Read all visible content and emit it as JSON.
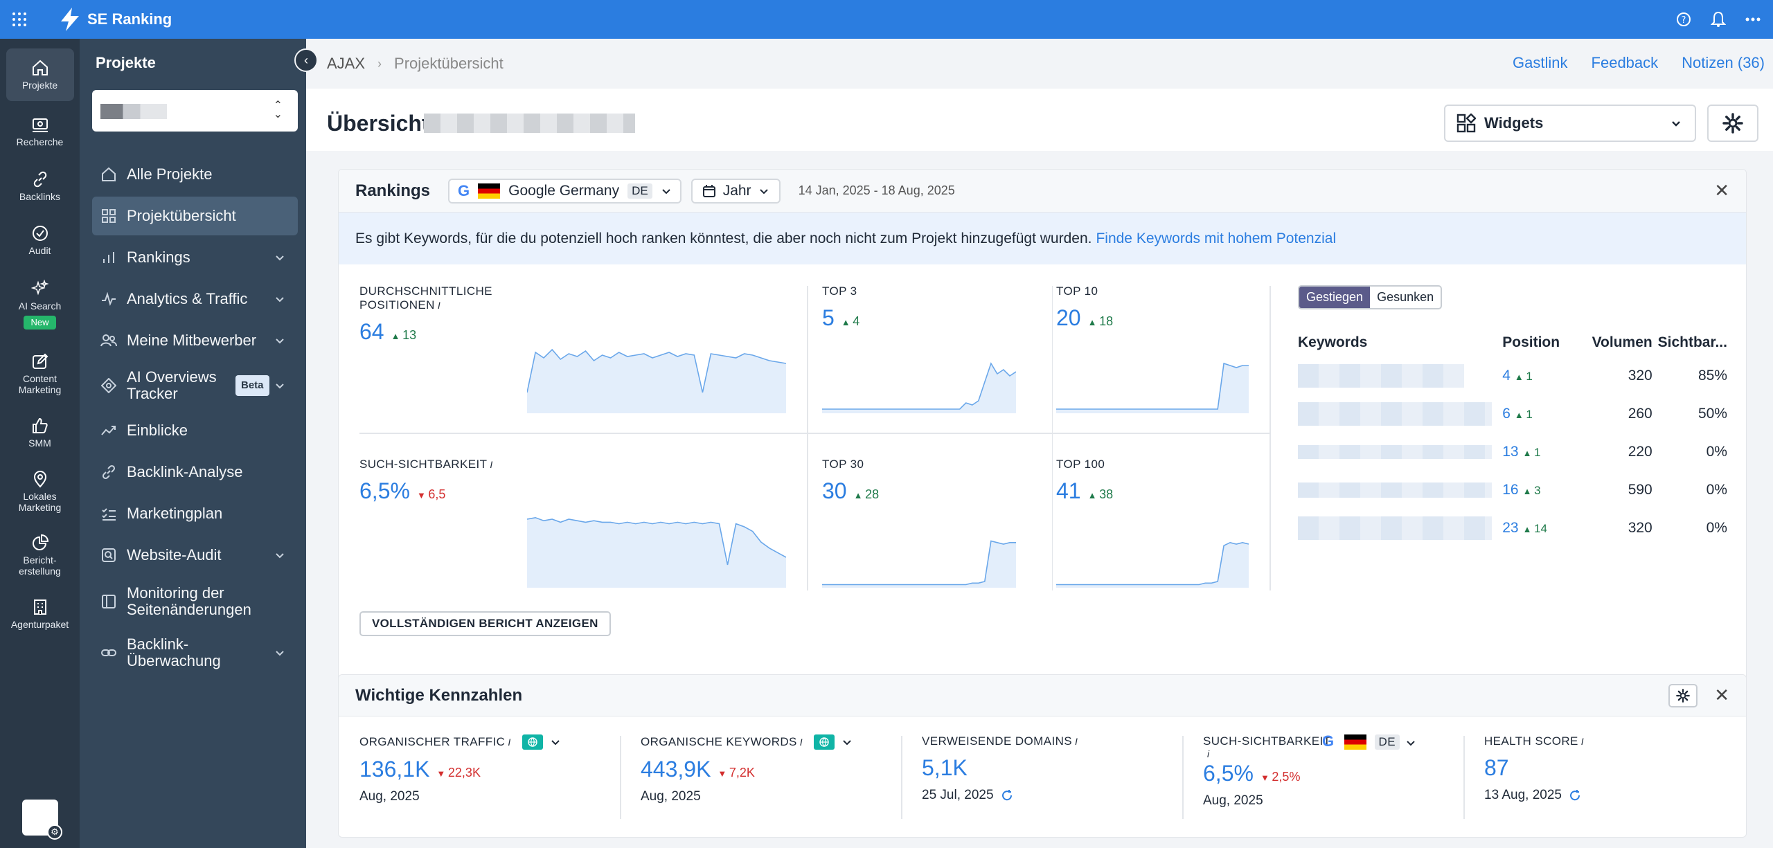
{
  "app": {
    "brand": "SE Ranking"
  },
  "rail": {
    "items": [
      {
        "label": "Projekte",
        "icon": "home-icon"
      },
      {
        "label": "Recherche",
        "icon": "research-icon"
      },
      {
        "label": "Backlinks",
        "icon": "link-icon"
      },
      {
        "label": "Audit",
        "icon": "check-circle-icon"
      },
      {
        "label": "AI Search",
        "icon": "sparkle-icon",
        "badge": "New"
      },
      {
        "label": "Content Marketing",
        "icon": "edit-icon"
      },
      {
        "label": "SMM",
        "icon": "thumbs-up-icon"
      },
      {
        "label": "Lokales Marketing",
        "icon": "map-pin-icon"
      },
      {
        "label": "Bericht-erstellung",
        "icon": "pie-chart-icon"
      },
      {
        "label": "Agenturpaket",
        "icon": "building-icon"
      }
    ]
  },
  "sidebar": {
    "title": "Projekte",
    "items": [
      {
        "label": "Alle Projekte",
        "icon": "home-icon",
        "chevron": false
      },
      {
        "label": "Projektübersicht",
        "icon": "grid-icon",
        "chevron": false
      },
      {
        "label": "Rankings",
        "icon": "bar-chart-icon",
        "chevron": true
      },
      {
        "label": "Analytics & Traffic",
        "icon": "pulse-icon",
        "chevron": true
      },
      {
        "label": "Meine Mitbewerber",
        "icon": "users-icon",
        "chevron": true
      },
      {
        "label": "AI Overviews Tracker",
        "icon": "ai-icon",
        "chevron": true,
        "badge": "Beta"
      },
      {
        "label": "Einblicke",
        "icon": "trend-icon",
        "chevron": false
      },
      {
        "label": "Backlink-Analyse",
        "icon": "link-icon",
        "chevron": false
      },
      {
        "label": "Marketingplan",
        "icon": "checklist-icon",
        "chevron": false
      },
      {
        "label": "Website-Audit",
        "icon": "audit-icon",
        "chevron": true
      },
      {
        "label": "Monitoring der Seitenänderungen",
        "icon": "book-icon",
        "chevron": false
      },
      {
        "label": "Backlink-Überwachung",
        "icon": "chain-icon",
        "chevron": true
      }
    ]
  },
  "breadcrumb": {
    "root": "AJAX",
    "current": "Projektübersicht"
  },
  "header_links": {
    "guest": "Gastlink",
    "feedback": "Feedback",
    "notes": "Notizen (36)"
  },
  "page": {
    "title": "Übersicht",
    "widgets_label": "Widgets"
  },
  "rankings": {
    "title": "Rankings",
    "engine": "Google Germany",
    "engine_region": "DE",
    "period": "Jahr",
    "date_range": "14 Jan, 2025 - 18 Aug, 2025",
    "banner_text": "Es gibt Keywords, für die du potenziell hoch ranken könntest, die aber noch nicht zum Projekt hinzugefügt wurden.",
    "banner_link": "Finde Keywords mit hohem Potenzial",
    "avg_pos": {
      "label": "Durchschnittliche Positionen",
      "value": "64",
      "change": "13"
    },
    "visibility": {
      "label": "Such-Sichtbarkeit",
      "value": "6,5%",
      "change": "6,5"
    },
    "top3": {
      "label": "TOP 3",
      "value": "5",
      "change": "4"
    },
    "top10": {
      "label": "TOP 10",
      "value": "20",
      "change": "18"
    },
    "top30": {
      "label": "TOP 30",
      "value": "30",
      "change": "28"
    },
    "top100": {
      "label": "TOP 100",
      "value": "41",
      "change": "38"
    },
    "report_button": "Vollständigen Bericht anzeigen",
    "seg": {
      "up": "Gestiegen",
      "down": "Gesunken"
    },
    "table": {
      "headers": [
        "Keywords",
        "Position",
        "Volumen",
        "Sichtbar..."
      ],
      "rows": [
        {
          "pos": "4",
          "change": "1",
          "volume": "320",
          "vis": "85%"
        },
        {
          "pos": "6",
          "change": "1",
          "volume": "260",
          "vis": "50%"
        },
        {
          "pos": "13",
          "change": "1",
          "volume": "220",
          "vis": "0%"
        },
        {
          "pos": "16",
          "change": "3",
          "volume": "590",
          "vis": "0%"
        },
        {
          "pos": "23",
          "change": "14",
          "volume": "320",
          "vis": "0%"
        }
      ]
    }
  },
  "kpis": {
    "title": "Wichtige Kennzahlen",
    "items": [
      {
        "label": "Organischer Traffic",
        "value": "136,1K",
        "change": "22,3K",
        "dir": "down",
        "date": "Aug, 2025"
      },
      {
        "label": "Organische Keywords",
        "value": "443,9K",
        "change": "7,2K",
        "dir": "down",
        "date": "Aug, 2025"
      },
      {
        "label": "Verweisende Domains",
        "value": "5,1K",
        "change": "",
        "dir": "",
        "date": "25 Jul, 2025"
      },
      {
        "label": "Such-Sichtbarkeit",
        "value": "6,5%",
        "change": "2,5%",
        "dir": "down",
        "date": "Aug, 2025",
        "region": "DE"
      },
      {
        "label": "Health Score",
        "value": "87",
        "change": "",
        "dir": "",
        "date": "13 Aug, 2025"
      }
    ]
  },
  "colors": {
    "accent": "#2b7de0",
    "topbar": "#2b7de0",
    "rail": "#2a3847",
    "sidebar": "#34475a",
    "up": "#1f7a4a",
    "down": "#d32f2f"
  },
  "chart_data": [
    {
      "type": "area",
      "title": "",
      "x_range": [
        "14 Jan, 2025",
        "18 Aug, 2025"
      ],
      "values": [
        30,
        88,
        80,
        92,
        78,
        86,
        82,
        90,
        76,
        84,
        80,
        88,
        82,
        84,
        86,
        80,
        84,
        88,
        82,
        86,
        84,
        30,
        86,
        84,
        82,
        80,
        86,
        84,
        80,
        76,
        74,
        72
      ]
    },
    {
      "type": "area",
      "title": "",
      "x_range": [
        "14 Jan, 2025",
        "18 Aug, 2025"
      ],
      "values": [
        90,
        92,
        88,
        90,
        86,
        90,
        88,
        86,
        88,
        86,
        86,
        84,
        86,
        84,
        86,
        84,
        86,
        84,
        86,
        84,
        86,
        84,
        86,
        84,
        30,
        84,
        80,
        74,
        60,
        52,
        46,
        40
      ]
    },
    {
      "type": "area",
      "title": "",
      "x_range": [
        "14 Jan, 2025",
        "18 Aug, 2025"
      ],
      "values": [
        4,
        4,
        4,
        4,
        4,
        4,
        4,
        4,
        4,
        4,
        4,
        4,
        4,
        4,
        4,
        4,
        4,
        4,
        4,
        4,
        4,
        4,
        4,
        10,
        8,
        12,
        30,
        48,
        38,
        42,
        36,
        40
      ]
    },
    {
      "type": "area",
      "title": "",
      "x_range": [
        "14 Jan, 2025",
        "18 Aug, 2025"
      ],
      "values": [
        4,
        4,
        4,
        4,
        4,
        4,
        4,
        4,
        4,
        4,
        4,
        4,
        4,
        4,
        4,
        4,
        4,
        4,
        4,
        4,
        4,
        4,
        4,
        4,
        4,
        4,
        4,
        48,
        46,
        44,
        46,
        46
      ]
    },
    {
      "type": "area",
      "title": "",
      "x_range": [
        "14 Jan, 2025",
        "18 Aug, 2025"
      ],
      "values": [
        4,
        4,
        4,
        4,
        4,
        4,
        4,
        4,
        4,
        4,
        4,
        4,
        4,
        4,
        4,
        4,
        4,
        4,
        4,
        4,
        4,
        4,
        4,
        4,
        6,
        6,
        8,
        60,
        58,
        56,
        58,
        58
      ]
    },
    {
      "type": "area",
      "title": "",
      "x_range": [
        "14 Jan, 2025",
        "18 Aug, 2025"
      ],
      "values": [
        4,
        4,
        4,
        4,
        4,
        4,
        4,
        4,
        4,
        4,
        4,
        4,
        4,
        4,
        4,
        4,
        4,
        4,
        4,
        4,
        4,
        4,
        4,
        4,
        6,
        6,
        8,
        54,
        58,
        56,
        58,
        56
      ]
    }
  ]
}
